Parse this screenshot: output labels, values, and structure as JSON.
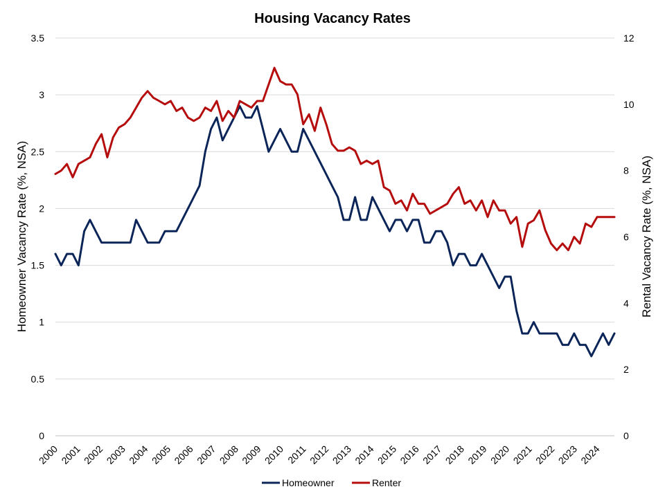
{
  "chart_data": {
    "type": "line",
    "title": "Housing Vacancy Rates",
    "ylabel_left": "Homeowner Vacancy Rate (%, NSA)",
    "ylabel_right": "Rental Vacancy Rate (%, NSA)",
    "ylim_left": [
      0,
      3.5
    ],
    "ylim_right": [
      0,
      12
    ],
    "yticks_left": [
      "0",
      "0.5",
      "1",
      "1.5",
      "2",
      "2.5",
      "3",
      "3.5"
    ],
    "yticks_right": [
      "0",
      "2",
      "4",
      "6",
      "8",
      "10",
      "12"
    ],
    "xticks": [
      "2000",
      "2001",
      "2002",
      "2003",
      "2004",
      "2005",
      "2006",
      "2007",
      "2008",
      "2009",
      "2010",
      "2011",
      "2012",
      "2013",
      "2014",
      "2015",
      "2016",
      "2017",
      "2018",
      "2019",
      "2020",
      "2021",
      "2022",
      "2023",
      "2024"
    ],
    "grid": true,
    "legend_position": "bottom",
    "series": [
      {
        "name": "Homeowner",
        "axis": "left",
        "color": "#0b2559",
        "values": [
          1.6,
          1.5,
          1.6,
          1.6,
          1.5,
          1.8,
          1.9,
          1.8,
          1.7,
          1.7,
          1.7,
          1.7,
          1.7,
          1.7,
          1.9,
          1.8,
          1.7,
          1.7,
          1.7,
          1.8,
          1.8,
          1.8,
          1.9,
          2.0,
          2.1,
          2.2,
          2.5,
          2.7,
          2.8,
          2.6,
          2.7,
          2.8,
          2.9,
          2.8,
          2.8,
          2.9,
          2.7,
          2.5,
          2.6,
          2.7,
          2.6,
          2.5,
          2.5,
          2.7,
          2.6,
          2.5,
          2.4,
          2.3,
          2.2,
          2.1,
          1.9,
          1.9,
          2.1,
          1.9,
          1.9,
          2.1,
          2.0,
          1.9,
          1.8,
          1.9,
          1.9,
          1.8,
          1.9,
          1.9,
          1.7,
          1.7,
          1.8,
          1.8,
          1.7,
          1.5,
          1.6,
          1.6,
          1.5,
          1.5,
          1.6,
          1.5,
          1.4,
          1.3,
          1.4,
          1.4,
          1.1,
          0.9,
          0.9,
          1.0,
          0.9,
          0.9,
          0.9,
          0.9,
          0.8,
          0.8,
          0.9,
          0.8,
          0.8,
          0.7,
          0.8,
          0.9,
          0.8,
          0.9
        ]
      },
      {
        "name": "Renter",
        "axis": "right",
        "color": "#b50d0d",
        "values": [
          7.9,
          8.0,
          8.2,
          7.8,
          8.2,
          8.3,
          8.4,
          8.8,
          9.1,
          8.4,
          9.0,
          9.3,
          9.4,
          9.6,
          9.9,
          10.2,
          10.4,
          10.2,
          10.1,
          10.0,
          10.1,
          9.8,
          9.9,
          9.6,
          9.5,
          9.6,
          9.9,
          9.8,
          10.1,
          9.5,
          9.8,
          9.6,
          10.1,
          10.0,
          9.9,
          10.1,
          10.1,
          10.6,
          11.1,
          10.7,
          10.6,
          10.6,
          10.3,
          9.4,
          9.7,
          9.2,
          9.9,
          9.4,
          8.8,
          8.6,
          8.6,
          8.7,
          8.6,
          8.2,
          8.3,
          8.2,
          8.3,
          7.5,
          7.4,
          7.0,
          7.1,
          6.8,
          7.3,
          7.0,
          7.0,
          6.7,
          6.8,
          6.9,
          7.0,
          7.3,
          7.5,
          7.0,
          7.1,
          6.8,
          7.1,
          6.6,
          7.1,
          6.8,
          6.8,
          6.4,
          6.6,
          5.7,
          6.4,
          6.5,
          6.8,
          6.2,
          5.8,
          5.6,
          5.8,
          5.6,
          6.0,
          5.8,
          6.4,
          6.3,
          6.6,
          6.6,
          6.6,
          6.6
        ]
      }
    ]
  }
}
